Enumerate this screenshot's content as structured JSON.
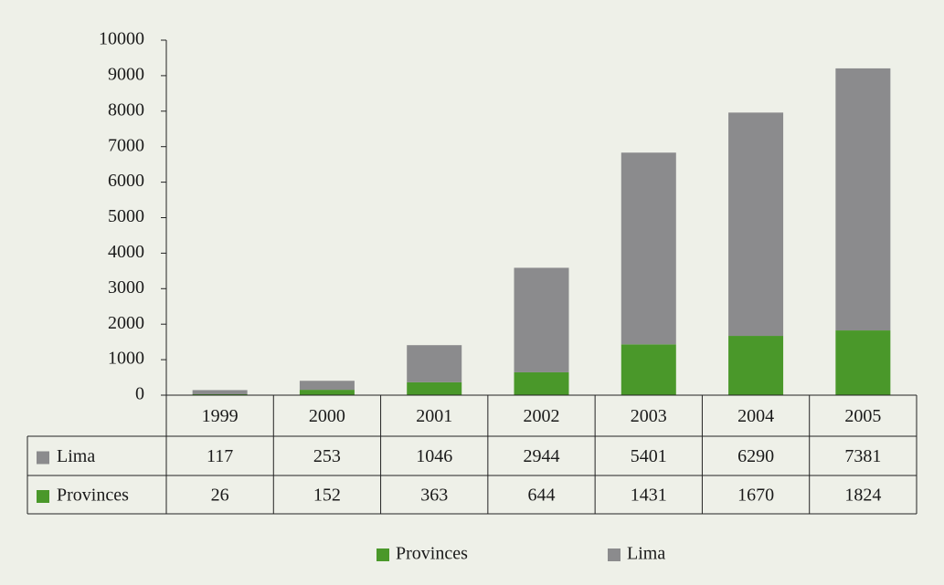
{
  "chart_data": {
    "type": "stacked_bar",
    "categories": [
      "1999",
      "2000",
      "2001",
      "2002",
      "2003",
      "2004",
      "2005"
    ],
    "series": [
      {
        "name": "Provinces",
        "color": "#4a982a",
        "values": [
          26,
          152,
          363,
          644,
          1431,
          1670,
          1824
        ]
      },
      {
        "name": "Lima",
        "color": "#8b8b8d",
        "values": [
          117,
          253,
          1046,
          2944,
          5401,
          6290,
          7381
        ]
      }
    ],
    "ylim": [
      0,
      10000
    ],
    "yticks": [
      0,
      1000,
      2000,
      3000,
      4000,
      5000,
      6000,
      7000,
      8000,
      9000,
      10000
    ],
    "grid": false
  }
}
